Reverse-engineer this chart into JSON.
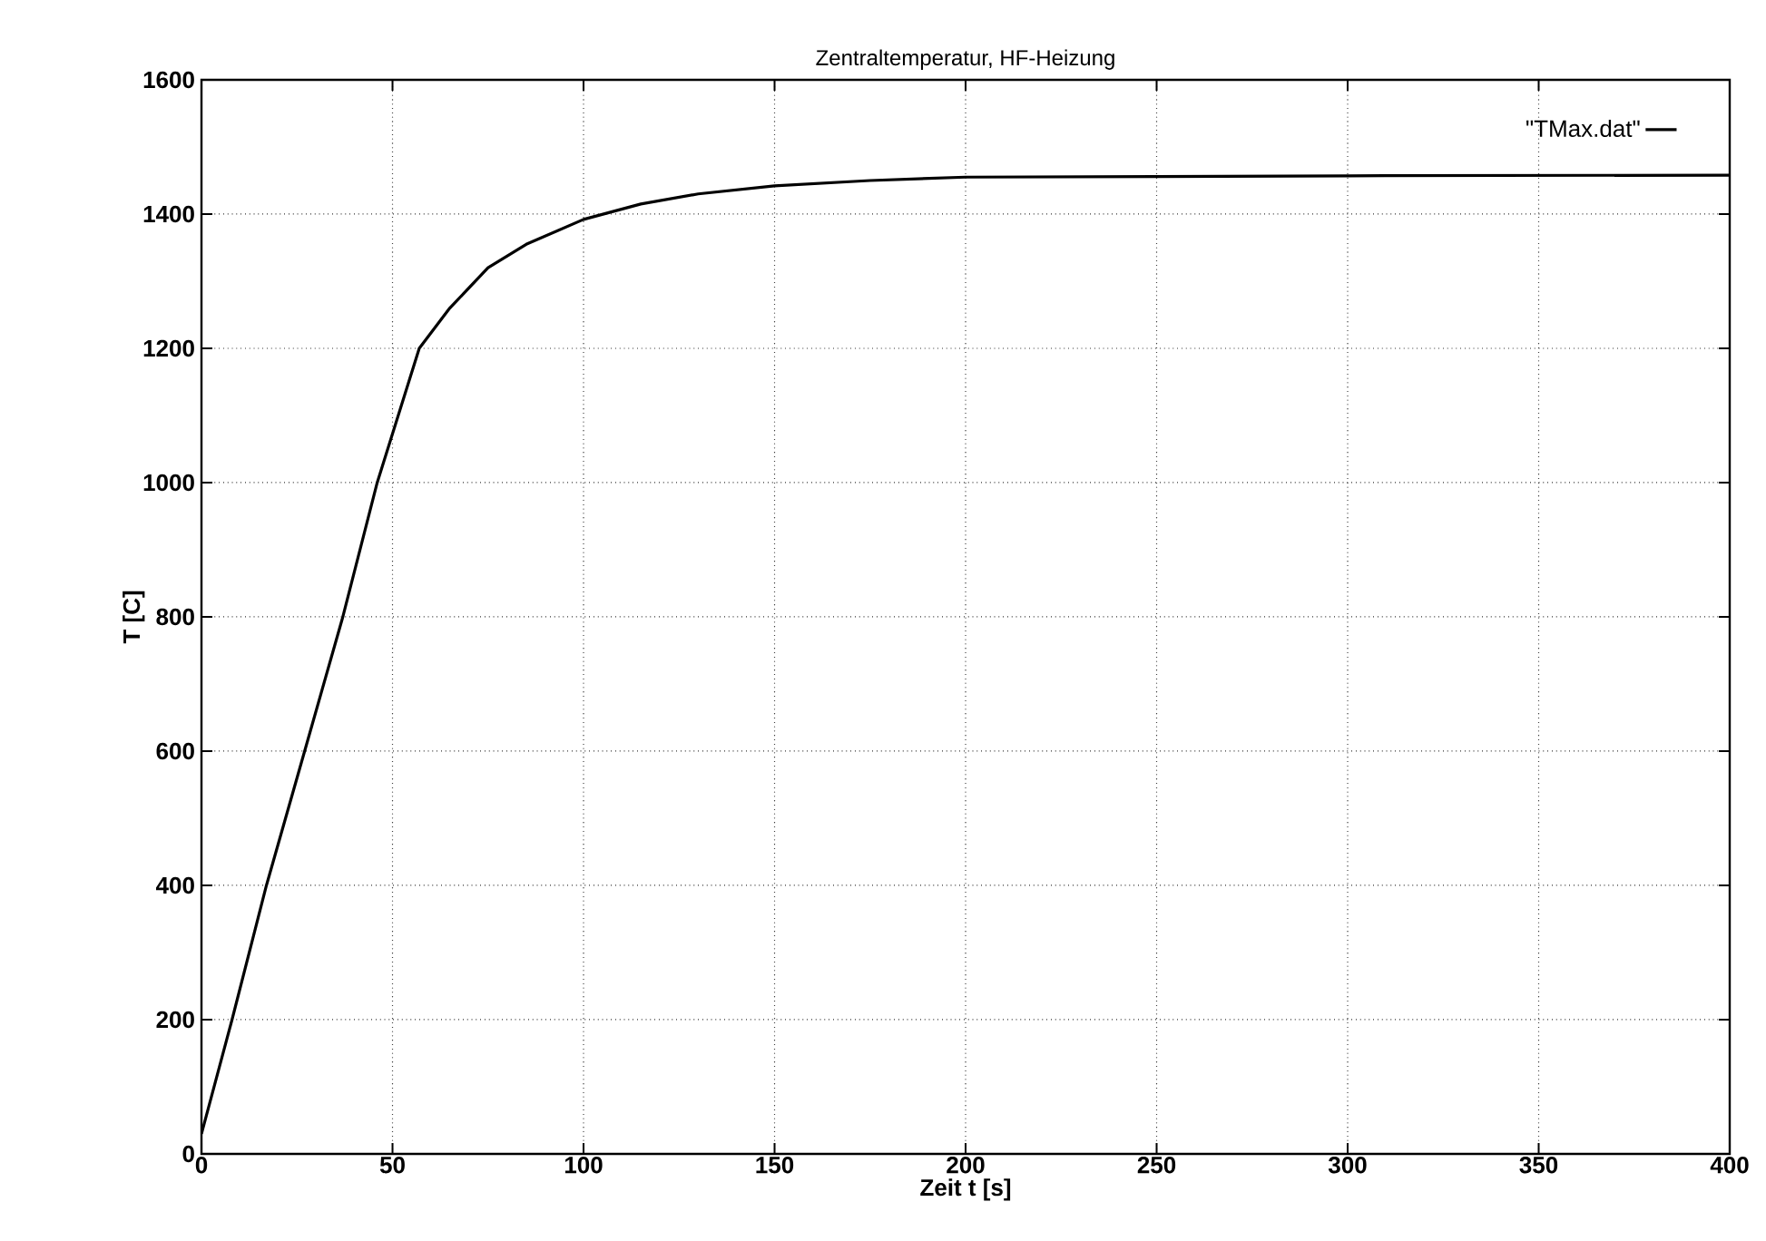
{
  "chart_data": {
    "type": "line",
    "title": "Zentraltemperatur, HF-Heizung",
    "xlabel": "Zeit t [s]",
    "ylabel": "T [C]",
    "xlim": [
      0,
      400
    ],
    "ylim": [
      0,
      1600
    ],
    "xticks": [
      0,
      50,
      100,
      150,
      200,
      250,
      300,
      350,
      400
    ],
    "yticks": [
      0,
      200,
      400,
      600,
      800,
      1000,
      1200,
      1400,
      1600
    ],
    "grid": true,
    "legend": "top right",
    "line_style": "solid",
    "marker": "none",
    "series": [
      {
        "name": "\"TMax.dat\"",
        "color": "#000000",
        "x": [
          0,
          8,
          17,
          27,
          37,
          46,
          57,
          65,
          75,
          85,
          100,
          115,
          130,
          150,
          175,
          200,
          250,
          300,
          400
        ],
        "values": [
          30,
          200,
          400,
          600,
          800,
          1000,
          1200,
          1260,
          1320,
          1355,
          1392,
          1415,
          1430,
          1442,
          1450,
          1455,
          1456,
          1457,
          1458
        ]
      }
    ]
  }
}
